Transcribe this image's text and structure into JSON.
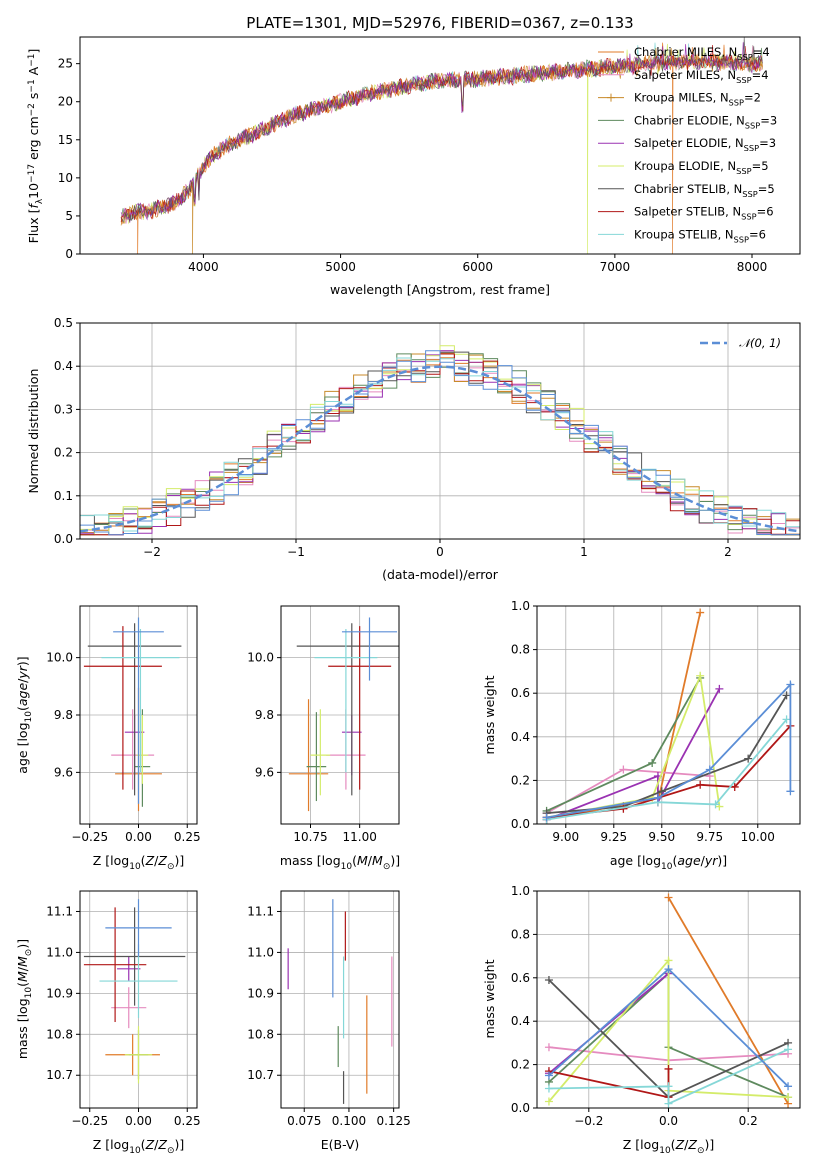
{
  "colors": {
    "Chabrier MILES": "#e07b2a",
    "Salpeter MILES": "#e58bbf",
    "Kroupa MILES": "#c88a2a",
    "Chabrier ELODIE": "#5e8a5e",
    "Salpeter ELODIE": "#9a32b2",
    "Kroupa ELODIE": "#d4ec6a",
    "Chabrier STELIB": "#555555",
    "Salpeter STELIB": "#b01717",
    "Kroupa STELIB": "#85d7d7",
    "blue": "#5b8ed6",
    "normal": "#5b8ed6"
  },
  "chart_data": [
    {
      "id": "spectrum",
      "type": "line",
      "title": "PLATE=1301, MJD=52976, FIBERID=0367, z=0.133",
      "xlabel": "wavelength [Angstrom, rest frame]",
      "ylabel": "Flux [f_λ10^-17 erg cm^-2 s^-1 A^-1]",
      "xlim": [
        3100,
        8350
      ],
      "ylim": [
        0,
        28.5
      ],
      "xticks": [
        4000,
        5000,
        6000,
        7000,
        8000
      ],
      "yticks": [
        0,
        5,
        10,
        15,
        20,
        25
      ],
      "grid": false,
      "legend_position": "right",
      "legend": [
        "Chabrier MILES, N_SSP=4",
        "Salpeter MILES, N_SSP=4",
        "Kroupa MILES, N_SSP=2",
        "Chabrier ELODIE, N_SSP=3",
        "Salpeter ELODIE, N_SSP=3",
        "Kroupa ELODIE, N_SSP=5",
        "Chabrier STELIB, N_SSP=5",
        "Salpeter STELIB, N_SSP=6",
        "Kroupa STELIB, N_SSP=6"
      ],
      "continuum": {
        "x": [
          3400,
          3500,
          3600,
          3700,
          3800,
          3900,
          4000,
          4100,
          4200,
          4300,
          4400,
          4500,
          4600,
          4700,
          4800,
          4900,
          5000,
          5200,
          5400,
          5600,
          5800,
          6000,
          6200,
          6400,
          6600,
          6800,
          7000,
          7200,
          7400,
          7600,
          7800,
          8000,
          8100
        ],
        "y": [
          4.8,
          5.5,
          5.6,
          6.2,
          6.8,
          8.5,
          11.5,
          13.5,
          14.5,
          15.3,
          16.0,
          17.0,
          17.8,
          18.5,
          19.0,
          19.5,
          20.0,
          21.0,
          21.8,
          22.5,
          22.8,
          23.0,
          23.3,
          23.6,
          24.0,
          24.3,
          24.6,
          24.9,
          25.2,
          25.3,
          25.2,
          25.0,
          24.9
        ]
      },
      "drops": [
        {
          "series": "Chabrier MILES",
          "x": 3520
        },
        {
          "series": "Kroupa MILES",
          "x": 3920
        },
        {
          "series": "Kroupa ELODIE",
          "x": 6800
        },
        {
          "series": "Chabrier MILES",
          "x": 7420
        }
      ]
    },
    {
      "id": "residuals",
      "type": "histogram",
      "xlabel": "(data-model)/error",
      "ylabel": "Normed distribution",
      "xlim": [
        -2.5,
        2.5
      ],
      "ylim": [
        0,
        0.5
      ],
      "xticks": [
        -2,
        -1,
        0,
        1,
        2
      ],
      "yticks": [
        0.0,
        0.1,
        0.2,
        0.3,
        0.4,
        0.5
      ],
      "grid": true,
      "legend_position": "upper right",
      "legend": [
        "𝒩(0, 1)"
      ],
      "reference": "normal(0,1)",
      "bin_width": 0.1
    },
    {
      "id": "age_vs_Z",
      "type": "errorbar",
      "xlabel": "Z [log10(Z/Z⊙)]",
      "ylabel": "age [log10(age/yr)]",
      "xlim": [
        -0.3,
        0.3
      ],
      "ylim": [
        9.42,
        10.18
      ],
      "xticks": [
        -0.25,
        0.0,
        0.25
      ],
      "yticks": [
        9.6,
        9.8,
        10.0
      ],
      "grid": true,
      "points": [
        {
          "series": "Chabrier MILES",
          "x": 0.0,
          "y": 9.595,
          "xerr": 0.12,
          "yerr": [
            0.13,
            0.3
          ]
        },
        {
          "series": "Salpeter MILES",
          "x": -0.03,
          "y": 9.66,
          "xerr": 0.11,
          "yerr": [
            0.12,
            0.16
          ]
        },
        {
          "series": "Chabrier ELODIE",
          "x": 0.02,
          "y": 9.62,
          "xerr": 0.04,
          "yerr": [
            0.14,
            0.2
          ]
        },
        {
          "series": "Salpeter ELODIE",
          "x": -0.02,
          "y": 9.74,
          "xerr": 0.05,
          "yerr": [
            0.15,
            0.06
          ]
        },
        {
          "series": "Kroupa ELODIE",
          "x": 0.02,
          "y": 9.66,
          "xerr": 0.03,
          "yerr": [
            0.1,
            0.14
          ]
        },
        {
          "series": "Chabrier STELIB",
          "x": -0.02,
          "y": 10.04,
          "xerr": 0.24,
          "yerr": [
            0.52,
            0.08
          ]
        },
        {
          "series": "Salpeter STELIB",
          "x": -0.08,
          "y": 9.97,
          "xerr": 0.2,
          "yerr": [
            0.43,
            0.14
          ]
        },
        {
          "series": "Kroupa STELIB",
          "x": 0.01,
          "y": 10.0,
          "xerr": 0.2,
          "yerr": [
            0.4,
            0.1
          ]
        },
        {
          "series": "blue",
          "x": 0.0,
          "y": 10.09,
          "xerr": 0.13,
          "yerr": [
            0.6,
            0.05
          ]
        }
      ]
    },
    {
      "id": "age_vs_mass",
      "type": "errorbar",
      "xlabel": "mass [log10(M/M⊙)]",
      "ylabel": "",
      "xlim": [
        10.6,
        11.2
      ],
      "ylim": [
        9.42,
        10.18
      ],
      "xticks": [
        10.75,
        11.0
      ],
      "yticks": [
        9.6,
        9.8,
        10.0
      ],
      "grid": true
    },
    {
      "id": "weight_vs_age",
      "type": "line",
      "xlabel": "age [log10(age/yr)]",
      "ylabel": "mass weight",
      "xlim": [
        8.85,
        10.22
      ],
      "ylim": [
        0,
        1.0
      ],
      "xticks": [
        9.0,
        9.25,
        9.5,
        9.75,
        10.0
      ],
      "yticks": [
        0.0,
        0.2,
        0.4,
        0.6,
        0.8,
        1.0
      ],
      "grid": true,
      "series": [
        {
          "name": "Chabrier MILES",
          "x": [
            8.9,
            9.48,
            9.48,
            9.7
          ],
          "y": [
            0.02,
            0.12,
            0.1,
            0.97
          ]
        },
        {
          "name": "Salpeter MILES",
          "x": [
            8.9,
            9.3,
            9.75
          ],
          "y": [
            0.05,
            0.25,
            0.22
          ]
        },
        {
          "name": "Chabrier ELODIE",
          "x": [
            8.9,
            9.45,
            9.7
          ],
          "y": [
            0.06,
            0.28,
            0.67
          ]
        },
        {
          "name": "Salpeter ELODIE",
          "x": [
            8.9,
            9.48,
            9.48,
            9.8
          ],
          "y": [
            0.02,
            0.22,
            0.1,
            0.62
          ]
        },
        {
          "name": "Kroupa ELODIE",
          "x": [
            8.9,
            9.45,
            9.7,
            9.8
          ],
          "y": [
            0.03,
            0.12,
            0.68,
            0.08
          ]
        },
        {
          "name": "Chabrier STELIB",
          "x": [
            8.9,
            9.3,
            9.5,
            9.95,
            10.15
          ],
          "y": [
            0.05,
            0.08,
            0.15,
            0.3,
            0.59
          ]
        },
        {
          "name": "Salpeter STELIB",
          "x": [
            8.9,
            9.3,
            9.7,
            9.88,
            10.17
          ],
          "y": [
            0.03,
            0.07,
            0.18,
            0.17,
            0.45
          ]
        },
        {
          "name": "Kroupa STELIB",
          "x": [
            8.9,
            9.48,
            9.78,
            10.15
          ],
          "y": [
            0.02,
            0.1,
            0.09,
            0.48
          ]
        },
        {
          "name": "blue",
          "x": [
            8.9,
            9.48,
            9.75,
            10.17,
            10.17
          ],
          "y": [
            0.03,
            0.12,
            0.25,
            0.64,
            0.15
          ]
        }
      ]
    },
    {
      "id": "mass_vs_Z",
      "type": "errorbar",
      "xlabel": "Z [log10(Z/Z⊙)]",
      "ylabel": "mass [log10(M/M⊙)]",
      "xlim": [
        -0.3,
        0.3
      ],
      "ylim": [
        10.62,
        11.15
      ],
      "xticks": [
        -0.25,
        0.0,
        0.25
      ],
      "yticks": [
        10.7,
        10.8,
        10.9,
        11.0,
        11.1
      ],
      "grid": true,
      "points": [
        {
          "series": "Chabrier MILES",
          "x": -0.03,
          "y": 10.75,
          "xerr": 0.14,
          "yerr": 0.05
        },
        {
          "series": "Salpeter MILES",
          "x": -0.05,
          "y": 10.865,
          "xerr": 0.09,
          "yerr": 0.05
        },
        {
          "series": "Chabrier ELODIE",
          "x": 0.0,
          "y": 10.75,
          "xerr": 0.05,
          "yerr": 0.06
        },
        {
          "series": "Salpeter ELODIE",
          "x": -0.05,
          "y": 10.96,
          "xerr": 0.06,
          "yerr": 0.03
        },
        {
          "series": "Kroupa ELODIE",
          "x": 0.0,
          "y": 10.75,
          "xerr": 0.07,
          "yerr": 0.07
        },
        {
          "series": "Chabrier STELIB",
          "x": -0.02,
          "y": 10.99,
          "xerr": 0.26,
          "yerr": 0.12
        },
        {
          "series": "Salpeter STELIB",
          "x": -0.12,
          "y": 10.97,
          "xerr": 0.16,
          "yerr": 0.14
        },
        {
          "series": "Kroupa STELIB",
          "x": 0.0,
          "y": 10.93,
          "xerr": 0.2,
          "yerr": 0.09
        },
        {
          "series": "blue",
          "x": 0.0,
          "y": 11.06,
          "xerr": 0.17,
          "yerr": 0.07
        }
      ]
    },
    {
      "id": "mass_vs_EBV",
      "type": "errorbar",
      "xlabel": "E(B-V)",
      "ylabel": "",
      "xlim": [
        0.062,
        0.128
      ],
      "ylim": [
        10.62,
        11.15
      ],
      "xticks": [
        0.075,
        0.1,
        0.125
      ],
      "yticks": [
        10.7,
        10.8,
        10.9,
        11.0,
        11.1
      ],
      "grid": true,
      "points": [
        {
          "series": "Chabrier MILES",
          "x": 0.11,
          "y": 10.775,
          "yerr": 0.12
        },
        {
          "series": "Salpeter MILES",
          "x": 0.124,
          "y": 10.88,
          "yerr": 0.11
        },
        {
          "series": "Chabrier ELODIE",
          "x": 0.094,
          "y": 10.77,
          "yerr": 0.05
        },
        {
          "series": "Salpeter ELODIE",
          "x": 0.066,
          "y": 10.96,
          "yerr": 0.05
        },
        {
          "series": "Chabrier STELIB",
          "x": 0.097,
          "y": 10.67,
          "yerr": 0.04
        },
        {
          "series": "Salpeter STELIB",
          "x": 0.098,
          "y": 11.04,
          "yerr": 0.06
        },
        {
          "series": "Kroupa STELIB",
          "x": 0.097,
          "y": 10.89,
          "yerr": 0.1
        },
        {
          "series": "blue",
          "x": 0.091,
          "y": 11.01,
          "yerr": 0.12
        }
      ]
    },
    {
      "id": "weight_vs_Z",
      "type": "line",
      "xlabel": "Z [log10(Z/Z⊙)]",
      "ylabel": "mass weight",
      "xlim": [
        -0.33,
        0.33
      ],
      "ylim": [
        0,
        1.0
      ],
      "xticks": [
        -0.2,
        0.0,
        0.2
      ],
      "yticks": [
        0.0,
        0.2,
        0.4,
        0.6,
        0.8,
        1.0
      ],
      "grid": true,
      "series": [
        {
          "name": "Chabrier MILES",
          "x": [
            0.0,
            0.3
          ],
          "y": [
            0.97,
            0.02
          ]
        },
        {
          "name": "Salpeter MILES",
          "x": [
            -0.3,
            0.0,
            0.3
          ],
          "y": [
            0.28,
            0.22,
            0.25
          ]
        },
        {
          "name": "Chabrier ELODIE",
          "x": [
            -0.3,
            0.0,
            0.0,
            0.3
          ],
          "y": [
            0.12,
            0.62,
            0.28,
            0.05
          ]
        },
        {
          "name": "Salpeter ELODIE",
          "x": [
            -0.3,
            0.0
          ],
          "y": [
            0.16,
            0.62
          ]
        },
        {
          "name": "Kroupa ELODIE",
          "x": [
            -0.3,
            0.0,
            0.0,
            0.3
          ],
          "y": [
            0.03,
            0.68,
            0.08,
            0.05
          ]
        },
        {
          "name": "Chabrier STELIB",
          "x": [
            -0.3,
            0.0,
            0.3
          ],
          "y": [
            0.59,
            0.05,
            0.3
          ]
        },
        {
          "name": "Salpeter STELIB",
          "x": [
            -0.3,
            0.0,
            0.0
          ],
          "y": [
            0.17,
            0.05,
            0.18
          ]
        },
        {
          "name": "Kroupa STELIB",
          "x": [
            -0.3,
            0.0,
            0.0,
            0.3
          ],
          "y": [
            0.09,
            0.1,
            0.02,
            0.27
          ]
        },
        {
          "name": "blue",
          "x": [
            -0.3,
            0.0,
            0.3
          ],
          "y": [
            0.15,
            0.64,
            0.1
          ]
        }
      ]
    }
  ]
}
